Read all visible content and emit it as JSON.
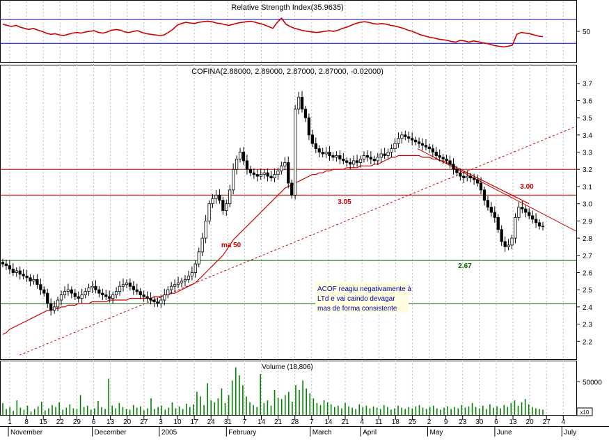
{
  "chart_data": [
    {
      "type": "line",
      "panel": "rsi",
      "title": "Relative Strength Index(35.9635)",
      "yticks": [
        "50"
      ],
      "ylim": [
        0,
        100
      ],
      "levels": [
        70,
        30
      ],
      "series": [
        {
          "values": [
            62,
            60,
            58,
            60,
            57,
            55,
            53,
            55,
            52,
            50,
            47,
            45,
            46,
            44,
            43,
            45,
            47,
            48,
            47,
            49,
            50,
            51,
            48,
            47,
            49,
            52,
            53,
            52,
            49,
            48,
            50,
            51,
            48,
            46,
            45,
            44,
            43,
            44,
            48,
            53,
            60,
            63,
            65,
            64,
            63,
            65,
            66,
            67,
            66,
            64,
            63,
            61,
            60,
            62,
            64,
            65,
            66,
            67,
            65,
            63,
            61,
            58,
            55,
            65,
            72,
            62,
            58,
            55,
            53,
            51,
            50,
            49,
            48,
            49,
            50,
            51,
            50,
            52,
            55,
            57,
            60,
            63,
            65,
            66,
            65,
            63,
            62,
            63,
            62,
            60,
            59,
            57,
            55,
            52,
            50,
            47,
            44,
            42,
            40,
            39,
            37,
            36,
            35,
            33,
            32,
            35,
            34,
            32,
            34,
            33,
            31,
            30,
            28,
            26,
            25,
            24,
            25,
            27,
            45,
            48,
            47,
            46,
            44,
            42,
            41
          ]
        }
      ]
    },
    {
      "type": "candlestick",
      "panel": "price",
      "title": "COFINA(2.88000, 2.89000, 2.87000, 2.87000, -0.02000)",
      "ylim": [
        2.1,
        3.8
      ],
      "yticks": [
        "2.2",
        "2.3",
        "2.4",
        "2.5",
        "2.6",
        "2.7",
        "2.8",
        "2.9",
        "3.0",
        "3.1",
        "3.2",
        "3.3",
        "3.4",
        "3.5",
        "3.6",
        "3.7"
      ],
      "close": [
        2.65,
        2.64,
        2.62,
        2.6,
        2.61,
        2.59,
        2.58,
        2.57,
        2.55,
        2.56,
        2.53,
        2.5,
        2.48,
        2.42,
        2.38,
        2.4,
        2.44,
        2.47,
        2.49,
        2.5,
        2.48,
        2.46,
        2.45,
        2.47,
        2.49,
        2.51,
        2.52,
        2.5,
        2.48,
        2.47,
        2.46,
        2.45,
        2.47,
        2.49,
        2.52,
        2.53,
        2.54,
        2.52,
        2.5,
        2.49,
        2.47,
        2.46,
        2.45,
        2.44,
        2.43,
        2.42,
        2.44,
        2.47,
        2.5,
        2.52,
        2.53,
        2.54,
        2.55,
        2.56,
        2.58,
        2.6,
        2.65,
        2.72,
        2.8,
        2.9,
        3.0,
        3.03,
        3.05,
        3.02,
        2.96,
        3.0,
        3.08,
        3.2,
        3.26,
        3.3,
        3.25,
        3.2,
        3.18,
        3.17,
        3.16,
        3.17,
        3.18,
        3.16,
        3.15,
        3.17,
        3.19,
        3.22,
        3.24,
        3.12,
        3.05,
        3.55,
        3.62,
        3.55,
        3.5,
        3.4,
        3.35,
        3.32,
        3.3,
        3.29,
        3.3,
        3.28,
        3.27,
        3.28,
        3.26,
        3.25,
        3.24,
        3.23,
        3.25,
        3.24,
        3.26,
        3.28,
        3.27,
        3.26,
        3.25,
        3.27,
        3.29,
        3.28,
        3.3,
        3.32,
        3.35,
        3.38,
        3.4,
        3.39,
        3.38,
        3.37,
        3.36,
        3.35,
        3.34,
        3.33,
        3.32,
        3.3,
        3.28,
        3.27,
        3.26,
        3.25,
        3.23,
        3.2,
        3.18,
        3.16,
        3.15,
        3.16,
        3.15,
        3.14,
        3.12,
        3.08,
        3.02,
        2.98,
        2.95,
        2.92,
        2.85,
        2.78,
        2.75,
        2.76,
        2.8,
        2.92,
        2.98,
        2.97,
        2.95,
        2.93,
        2.91,
        2.89,
        2.87,
        2.87
      ],
      "hlines": [
        {
          "value": 3.2,
          "color": "#cc0000"
        },
        {
          "value": 3.05,
          "color": "#cc0000",
          "label": "3.05"
        },
        {
          "value": 2.67,
          "color": "#006600",
          "label": "2.67"
        },
        {
          "value": 2.42,
          "color": "#006600"
        }
      ],
      "ma_label": "ma 50",
      "resistance_label": "3.00",
      "ma50": [
        2.24,
        2.25,
        2.27,
        2.28,
        2.29,
        2.3,
        2.31,
        2.32,
        2.33,
        2.34,
        2.35,
        2.36,
        2.37,
        2.38,
        2.38,
        2.39,
        2.39,
        2.4,
        2.4,
        2.41,
        2.41,
        2.41,
        2.42,
        2.42,
        2.42,
        2.42,
        2.43,
        2.43,
        2.43,
        2.43,
        2.43,
        2.44,
        2.44,
        2.44,
        2.44,
        2.44,
        2.44,
        2.45,
        2.45,
        2.45,
        2.45,
        2.45,
        2.45,
        2.45,
        2.46,
        2.46,
        2.46,
        2.47,
        2.47,
        2.48,
        2.48,
        2.49,
        2.5,
        2.51,
        2.52,
        2.53,
        2.54,
        2.56,
        2.58,
        2.6,
        2.62,
        2.64,
        2.66,
        2.68,
        2.7,
        2.73,
        2.76,
        2.79,
        2.81,
        2.83,
        2.85,
        2.87,
        2.89,
        2.91,
        2.93,
        2.95,
        2.97,
        2.99,
        3.01,
        3.03,
        3.05,
        3.07,
        3.09,
        3.1,
        3.11,
        3.12,
        3.13,
        3.14,
        3.15,
        3.16,
        3.17,
        3.17,
        3.18,
        3.18,
        3.19,
        3.19,
        3.2,
        3.2,
        3.2,
        3.2,
        3.21,
        3.21,
        3.21,
        3.21,
        3.22,
        3.22,
        3.22,
        3.22,
        3.23,
        3.23,
        3.24,
        3.25,
        3.26,
        3.27,
        3.27,
        3.28,
        3.28,
        3.28,
        3.28,
        3.28,
        3.28,
        3.28,
        3.27,
        3.27,
        3.27,
        3.26,
        3.26,
        3.25,
        3.25,
        3.24,
        3.23,
        3.22,
        3.21,
        3.2,
        3.19,
        3.18,
        3.17,
        3.16,
        3.15,
        3.14,
        3.13,
        3.12,
        3.11,
        3.1,
        3.09,
        3.08,
        3.07,
        3.06,
        3.05,
        3.04,
        3.03,
        3.02,
        3.01,
        3.0,
        null,
        null
      ],
      "annotation": [
        "ACOF reagiu negativamente à",
        "LTd  e vai caindo devagar",
        "mas de forma consistente"
      ]
    },
    {
      "type": "bar",
      "panel": "volume",
      "title": "Volume (18,806)",
      "yticks": [
        "50000"
      ],
      "scale_note": "x10",
      "values": [
        18,
        9,
        12,
        6,
        22,
        11,
        8,
        14,
        5,
        9,
        13,
        20,
        7,
        10,
        15,
        12,
        19,
        8,
        11,
        16,
        10,
        9,
        30,
        12,
        14,
        8,
        10,
        21,
        12,
        9,
        55,
        14,
        10,
        18,
        12,
        9,
        8,
        15,
        11,
        13,
        7,
        10,
        25,
        9,
        12,
        14,
        8,
        11,
        19,
        10,
        13,
        9,
        17,
        12,
        16,
        35,
        28,
        15,
        48,
        22,
        19,
        25,
        40,
        18,
        30,
        52,
        72,
        60,
        45,
        28,
        19,
        15,
        12,
        62,
        18,
        22,
        14,
        38,
        26,
        24,
        30,
        35,
        20,
        45,
        38,
        52,
        40,
        33,
        25,
        18,
        15,
        22,
        19,
        16,
        12,
        14,
        10,
        18,
        13,
        11,
        9,
        16,
        12,
        14,
        10,
        13,
        11,
        9,
        15,
        12,
        8,
        10,
        14,
        11,
        9,
        12,
        10,
        13,
        15,
        11,
        9,
        12,
        14,
        10,
        8,
        11,
        13,
        9,
        12,
        10,
        15,
        11,
        13,
        18,
        12,
        10,
        14,
        9,
        16,
        11,
        13,
        10,
        15,
        12,
        18,
        22,
        14,
        19,
        24,
        16,
        12,
        10,
        9,
        8
      ]
    }
  ],
  "x_axis": {
    "day_ticks": [
      "1",
      "8",
      "15",
      "22",
      "29",
      "6",
      "13",
      "20",
      "27",
      "3",
      "10",
      "17",
      "24",
      "31",
      "7",
      "14",
      "21",
      "28",
      "7",
      "14",
      "21",
      "4",
      "11",
      "18",
      "25",
      "2",
      "9",
      "23",
      "30",
      "6",
      "13",
      "20",
      "27",
      "4"
    ],
    "month_labels": [
      "November",
      "December",
      "2005",
      "February",
      "March",
      "April",
      "May",
      "June",
      "July"
    ]
  }
}
